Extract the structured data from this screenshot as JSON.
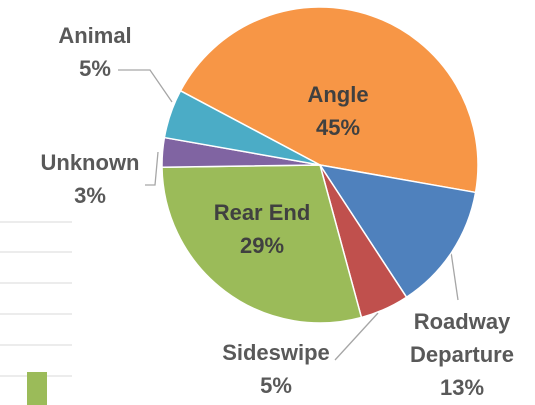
{
  "chart_data": {
    "type": "pie",
    "categories": [
      "Angle",
      "Roadway Departure",
      "Sideswipe",
      "Rear End",
      "Unknown",
      "Animal"
    ],
    "values": [
      45,
      13,
      5,
      29,
      3,
      5
    ],
    "value_labels": [
      "45%",
      "13%",
      "5%",
      "29%",
      "3%",
      "5%"
    ],
    "colors": [
      "#F79646",
      "#4F81BD",
      "#C0504D",
      "#9BBB59",
      "#8064A2",
      "#4BACC6"
    ]
  }
}
